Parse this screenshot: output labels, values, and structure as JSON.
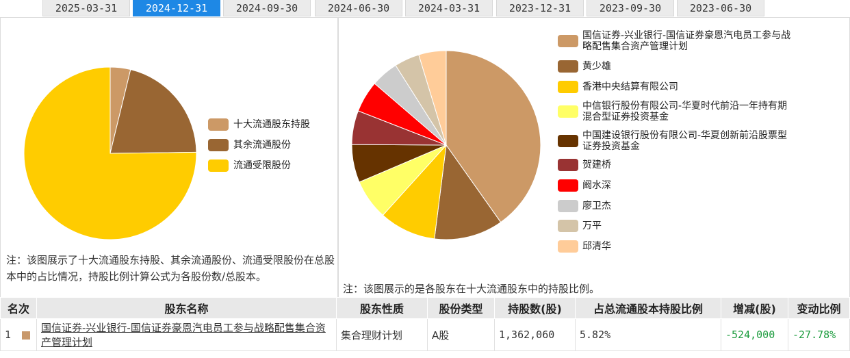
{
  "tabs": [
    {
      "label": "2025-03-31",
      "active": false
    },
    {
      "label": "2024-12-31",
      "active": true
    },
    {
      "label": "2024-09-30",
      "active": false
    },
    {
      "label": "2024-06-30",
      "active": false
    },
    {
      "label": "2024-03-31",
      "active": false
    },
    {
      "label": "2023-12-31",
      "active": false
    },
    {
      "label": "2023-09-30",
      "active": false
    },
    {
      "label": "2023-06-30",
      "active": false
    }
  ],
  "chart_data": [
    {
      "type": "pie",
      "labels": [
        "十大流通股东持股",
        "其余流通股份",
        "流通受限股份"
      ],
      "values": [
        3.8,
        21.0,
        75.2
      ],
      "colors": [
        "#cc9966",
        "#996633",
        "#ffcc00"
      ]
    },
    {
      "type": "pie",
      "labels": [
        "国信证券-兴业银行-国信证券豪恩汽电员工参与战略配售集合资产管理计划",
        "黄少雄",
        "香港中央结算有限公司",
        "中信银行股份有限公司-华夏时代前沿一年持有期混合型证券投资基金",
        "中国建设银行股份有限公司-华夏创新前沿股票型证券投资基金",
        "贺建桥",
        "阚水深",
        "廖卫杰",
        "万平",
        "邱清华"
      ],
      "values": [
        40.2,
        11.8,
        9.7,
        6.9,
        6.5,
        5.8,
        5.4,
        4.7,
        4.3,
        4.7
      ],
      "colors": [
        "#cc9966",
        "#996633",
        "#ffcc00",
        "#ffff66",
        "#663300",
        "#993333",
        "#ff0000",
        "#cccccc",
        "#d4c4a8",
        "#ffcc99"
      ]
    }
  ],
  "left_note": "注：该图展示了十大流通股东持股、其余流通股份、流通受限股份在总股本中的占比情况，持股比例计算公式为各股份数/总股本。",
  "right_note": "注：该图展示的是各股东在十大流通股东中的持股比例。",
  "table": {
    "headers": [
      "名次",
      "股东名称",
      "股东性质",
      "股份类型",
      "持股数(股)",
      "占总流通股本持股比例",
      "增减(股)",
      "变动比例"
    ],
    "rows": [
      {
        "rank": "1",
        "name": "国信证券-兴业银行-国信证券豪恩汽电员工参与战略配售集合资产管理计划",
        "nature": "集合理财计划",
        "type": "A股",
        "shares": "1,362,060",
        "ratio": "5.82%",
        "change": "-524,000",
        "change_pct": "-27.78%"
      }
    ]
  }
}
